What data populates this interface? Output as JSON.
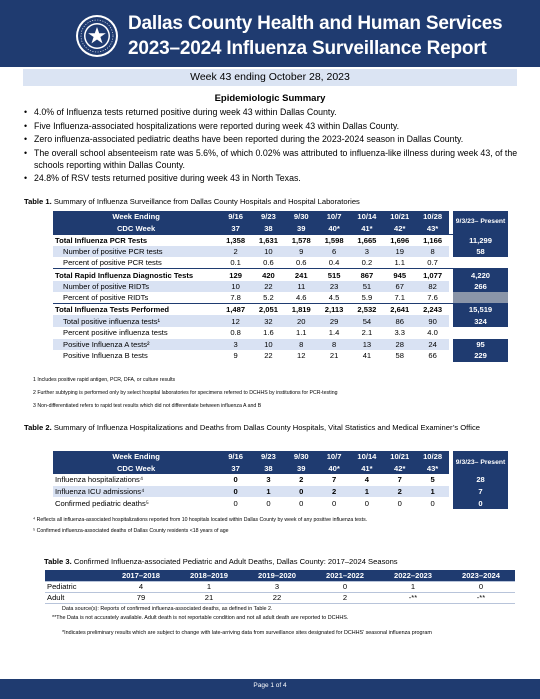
{
  "header": {
    "title_line1": "Dallas County Health and Human Services",
    "title_line2": "2023–2024 Influenza Surveillance Report",
    "seal_icon": "dallas-county-seal"
  },
  "week_banner": "Week 43 ending October 28, 2023",
  "summary": {
    "title": "Epidemiologic Summary",
    "bullets": [
      "4.0% of Influenza tests returned positive during week 43 within Dallas County.",
      "Five Influenza-associated hospitalizations were reported during week 43 within Dallas County.",
      "Zero influenza-associated pediatric deaths have been reported during the 2023-2024 season in Dallas County.",
      "The overall school absenteeism rate was 5.6%, of which 0.02% was attributed to influenza-like illness during week 43, of the schools reporting within Dallas County.",
      "24.8% of RSV tests returned positive during week 43 in North Texas."
    ]
  },
  "table1": {
    "caption_bold": "Table 1.",
    "caption": " Summary of Influenza Surveillance from Dallas County Hospitals and Hospital Laboratories",
    "week_label": "Week Ending",
    "cdc_label": "CDC Week",
    "weeks": [
      "9/16",
      "9/23",
      "9/30",
      "10/7",
      "10/14",
      "10/21",
      "10/28"
    ],
    "cdc_weeks": [
      "37",
      "38",
      "39",
      "40*",
      "41*",
      "42*",
      "43*"
    ],
    "present_header": "9/3/23– Present",
    "rows": [
      {
        "label": "Total Influenza PCR Tests",
        "values": [
          "1,358",
          "1,631",
          "1,578",
          "1,598",
          "1,665",
          "1,696",
          "1,166"
        ],
        "present": "11,299"
      },
      {
        "label": "Number of positive PCR tests",
        "values": [
          "2",
          "10",
          "9",
          "6",
          "3",
          "19",
          "8"
        ],
        "present": "58"
      },
      {
        "label": "Percent of positive PCR tests",
        "values": [
          "0.1",
          "0.6",
          "0.6",
          "0.4",
          "0.2",
          "1.1",
          "0.7"
        ],
        "present": ""
      },
      {
        "label": "Total Rapid Influenza Diagnostic Tests",
        "values": [
          "129",
          "420",
          "241",
          "515",
          "867",
          "945",
          "1,077"
        ],
        "present": "4,220"
      },
      {
        "label": "Number of positive RIDTs",
        "values": [
          "10",
          "22",
          "11",
          "23",
          "51",
          "67",
          "82"
        ],
        "present": "266"
      },
      {
        "label": "Percent of positive RIDTs",
        "values": [
          "7.8",
          "5.2",
          "4.6",
          "4.5",
          "5.9",
          "7.1",
          "7.6"
        ],
        "present": ""
      },
      {
        "label": "Total Influenza Tests Performed",
        "values": [
          "1,487",
          "2,051",
          "1,819",
          "2,113",
          "2,532",
          "2,641",
          "2,243"
        ],
        "present": "15,519"
      },
      {
        "label": "Total positive influenza tests¹",
        "values": [
          "12",
          "32",
          "20",
          "29",
          "54",
          "86",
          "90"
        ],
        "present": "324"
      },
      {
        "label": "Percent positive influenza tests",
        "values": [
          "0.8",
          "1.6",
          "1.1",
          "1.4",
          "2.1",
          "3.3",
          "4.0"
        ],
        "present": ""
      },
      {
        "label": "Positive Influenza A tests²",
        "values": [
          "3",
          "10",
          "8",
          "8",
          "13",
          "28",
          "24"
        ],
        "present": "95"
      },
      {
        "label": "Positive Influenza B tests",
        "values": [
          "9",
          "22",
          "12",
          "21",
          "41",
          "58",
          "66"
        ],
        "present": "229"
      }
    ],
    "footnotes": [
      "1 Includes positive rapid antigen, PCR, DFA, or culture results",
      "2 Further subtyping is performed only by select hospital laboratories for specimens referred to DCHHS by institutions for PCR-testing",
      "3 Non-differentiated refers to rapid test results which did not differentiate between influenza A and B"
    ]
  },
  "table2": {
    "caption_bold": "Table 2.",
    "caption": " Summary of Influenza Hospitalizations and Deaths from Dallas County Hospitals, Vital Statistics and Medical Examiner’s Office",
    "week_label": "Week Ending",
    "cdc_label": "CDC Week",
    "weeks": [
      "9/16",
      "9/23",
      "9/30",
      "10/7",
      "10/14",
      "10/21",
      "10/28"
    ],
    "cdc_weeks": [
      "37",
      "38",
      "39",
      "40*",
      "41*",
      "42*",
      "43*"
    ],
    "present_header": "9/3/23– Present",
    "rows": [
      {
        "label": "Influenza hospitalizations⁴",
        "values": [
          "0",
          "3",
          "2",
          "7",
          "4",
          "7",
          "5"
        ],
        "present": "28"
      },
      {
        "label": "Influenza ICU admissions⁴",
        "values": [
          "0",
          "1",
          "0",
          "2",
          "1",
          "2",
          "1"
        ],
        "present": "7"
      },
      {
        "label": "Confirmed pediatric deaths⁵",
        "values": [
          "0",
          "0",
          "0",
          "0",
          "0",
          "0",
          "0"
        ],
        "present": "0"
      }
    ],
    "footnotes": [
      "⁴ Reflects all influenza-associated hospitalizations reported from 10 hospitals located within Dallas County by week of any positive influenza tests.",
      "⁵ Confirmed influenza-associated deaths of Dallas County residents <18 years of age"
    ]
  },
  "table3": {
    "caption_bold": "Table 3.",
    "caption": " Confirmed Influenza-associated Pediatric and Adult Deaths, Dallas County: 2017–2024 Seasons",
    "seasons": [
      "2017–2018",
      "2018–2019",
      "2019–2020",
      "2021–2022",
      "2022–2023",
      "2023–2024"
    ],
    "rows": [
      {
        "label": "Pediatric",
        "values": [
          "4",
          "1",
          "3",
          "0",
          "1",
          "0"
        ]
      },
      {
        "label": "Adult",
        "values": [
          "79",
          "21",
          "22",
          "2",
          "-**",
          "-**"
        ]
      }
    ],
    "notes": [
      "Data source(s): Reports of confirmed influenza-associated deaths, as defined in Table 2.",
      "**The Data is not accurately available. Adult death is not reportable condition and not all adult death are reported to DCHHS.",
      "*Indicates preliminary results which are subject to change with late-arriving data from surveillance sites designated for DCHHS’ seasonal influenza program"
    ]
  },
  "footer": "Page 1 of 4",
  "colors": {
    "navy": "#1f3b70",
    "light_blue": "#d9e2f3",
    "banner": "#dbe4f3"
  }
}
